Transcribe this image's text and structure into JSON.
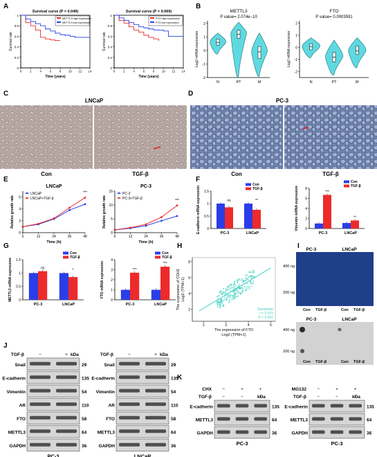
{
  "figure": {
    "panel_letters": {
      "A": "A",
      "B": "B",
      "C": "C",
      "D": "D",
      "E": "E",
      "F": "F",
      "G": "G",
      "H": "H",
      "I": "I",
      "J": "J",
      "K": "K"
    },
    "micro": {
      "c_title": "LNCaP",
      "d_title": "PC-3",
      "con": "Con",
      "tgf": "TGF-β"
    },
    "dotblot": {
      "top_left": "PC-3",
      "top_right": "LNCaP",
      "row1": "400 ng",
      "row2": "200 ng",
      "lanes": [
        "Con",
        "TGF-β",
        "Con",
        "TGF-β"
      ]
    },
    "colors": {
      "blue": "#2a3ee8",
      "red": "#ee2a2a",
      "cyan": "#5fd9e0",
      "teal": "#45d0c4"
    }
  },
  "chart_data": [
    {
      "id": "A1",
      "type": "line",
      "title": "Survival curve (P = 0.049)",
      "xlabel": "Time (years)",
      "ylabel": "Survival rate",
      "xlim": [
        0,
        14
      ],
      "ylim": [
        0,
        1.0
      ],
      "xticks": [
        0,
        2,
        4,
        6,
        8,
        10,
        12,
        14
      ],
      "yticks": [
        0.0,
        0.2,
        0.4,
        0.6,
        0.8,
        1.0
      ],
      "series": [
        {
          "name": "METTL3 high expression",
          "color": "red",
          "x": [
            0,
            1,
            2,
            3,
            4,
            5,
            6,
            7,
            8
          ],
          "values": [
            1.0,
            0.86,
            0.8,
            0.72,
            0.58,
            0.55,
            0.53,
            0.52,
            0.52
          ]
        },
        {
          "name": "METTL3 low expression",
          "color": "blue",
          "x": [
            0,
            1,
            2,
            3,
            4,
            5,
            6,
            7,
            8,
            9,
            10,
            11,
            12,
            14
          ],
          "values": [
            1.0,
            0.93,
            0.88,
            0.84,
            0.8,
            0.74,
            0.7,
            0.66,
            0.63,
            0.62,
            0.6,
            0.58,
            0.58,
            0.58
          ]
        }
      ]
    },
    {
      "id": "A2",
      "type": "line",
      "title": "Survival curve (P = 0.069)",
      "xlabel": "Time (years)",
      "ylabel": "Survival rate",
      "xlim": [
        0,
        14
      ],
      "ylim": [
        0,
        1.0
      ],
      "xticks": [
        0,
        2,
        4,
        6,
        8,
        10,
        12,
        14
      ],
      "yticks": [
        0.0,
        0.2,
        0.4,
        0.6,
        0.8,
        1.0
      ],
      "series": [
        {
          "name": "FTO high expression",
          "color": "red",
          "x": [
            0,
            1,
            2,
            3,
            4,
            5,
            6,
            7,
            8,
            9
          ],
          "values": [
            1.0,
            0.9,
            0.85,
            0.78,
            0.72,
            0.68,
            0.62,
            0.58,
            0.55,
            0.52
          ]
        },
        {
          "name": "FTO low expression",
          "color": "blue",
          "x": [
            0,
            1,
            2,
            3,
            4,
            5,
            6,
            7,
            8,
            9,
            10,
            11,
            12,
            14
          ],
          "values": [
            1.0,
            0.95,
            0.9,
            0.86,
            0.82,
            0.78,
            0.76,
            0.74,
            0.72,
            0.72,
            0.7,
            0.6,
            0.6,
            0.6
          ]
        }
      ]
    },
    {
      "id": "B1",
      "type": "violin",
      "title": "METTL3",
      "subtitle": "P value=  2.074e−10",
      "ylabel": "Log2 mRNA expression",
      "categories": [
        "N",
        "PT",
        "M"
      ],
      "ylim": [
        -2,
        2.2
      ],
      "yticks": [
        -2,
        -1,
        0,
        1,
        2
      ],
      "medians": [
        0.6,
        1.2,
        -0.1
      ],
      "q1": [
        0.4,
        0.9,
        -0.6
      ],
      "q3": [
        0.85,
        1.5,
        0.3
      ],
      "min": [
        -0.2,
        -1.8,
        -1.8
      ],
      "max": [
        1.3,
        2.1,
        1.3
      ]
    },
    {
      "id": "B2",
      "type": "violin",
      "title": "FTO",
      "subtitle": "P value= 0.0003591",
      "ylabel": "Log2 mRNA expression",
      "categories": [
        "N",
        "PT",
        "M"
      ],
      "ylim": [
        -2.5,
        2.2
      ],
      "yticks": [
        -2,
        -1,
        0,
        1,
        2
      ],
      "medians": [
        0.05,
        -0.8,
        -0.3
      ],
      "q1": [
        -0.2,
        -1.2,
        -0.6
      ],
      "q3": [
        0.3,
        -0.4,
        0.1
      ],
      "min": [
        -0.8,
        -2.2,
        -1.6
      ],
      "max": [
        0.8,
        0.6,
        0.8
      ]
    },
    {
      "id": "E1",
      "type": "line",
      "title": "LNCaP",
      "xlabel": "Time (h)",
      "ylabel": "Relative growth rate",
      "xlim": [
        0,
        48
      ],
      "ylim": [
        0,
        7
      ],
      "xticks": [
        0,
        12,
        24,
        36,
        48
      ],
      "yticks": [
        0,
        2,
        4,
        6
      ],
      "x": [
        0,
        12,
        24,
        36,
        48
      ],
      "annotations": [
        "***"
      ],
      "series": [
        {
          "name": "LNCaP",
          "color": "blue",
          "values": [
            1,
            1.4,
            2.3,
            3.8,
            4.8
          ]
        },
        {
          "name": "LNCaP+TGF-β",
          "color": "red",
          "values": [
            1,
            1.5,
            2.4,
            4.2,
            5.9
          ]
        }
      ]
    },
    {
      "id": "E2",
      "type": "line",
      "title": "PC-3",
      "xlabel": "Time (h)",
      "ylabel": "Relative growth rate",
      "xlim": [
        0,
        48
      ],
      "ylim": [
        0,
        15
      ],
      "xticks": [
        0,
        12,
        24,
        36,
        48
      ],
      "yticks": [
        0,
        5,
        10,
        15
      ],
      "x": [
        0,
        12,
        24,
        36,
        48
      ],
      "annotations": [
        "***"
      ],
      "series": [
        {
          "name": "PC-3",
          "color": "blue",
          "values": [
            1,
            1.6,
            2.5,
            4.3,
            6.0
          ]
        },
        {
          "name": "PC-3+TGF-β",
          "color": "red",
          "values": [
            1,
            1.8,
            3.0,
            5.6,
            9.8
          ]
        }
      ]
    },
    {
      "id": "F1",
      "type": "bar",
      "ylabel": "E-cadherin mRNA expression",
      "categories": [
        "PC-3",
        "LNCaP"
      ],
      "ylim": [
        0,
        1.5
      ],
      "yticks": [
        0,
        0.5,
        1.0,
        1.5
      ],
      "sig": [
        "ns",
        "**"
      ],
      "series": [
        {
          "name": "Con",
          "color": "blue",
          "values": [
            1.0,
            1.0
          ]
        },
        {
          "name": "TGF-β",
          "color": "red",
          "values": [
            0.85,
            0.75
          ]
        }
      ]
    },
    {
      "id": "F2",
      "type": "bar",
      "ylabel": "Vimentin mRNA expression",
      "categories": [
        "PC-3",
        "LNCaP"
      ],
      "ylim": [
        0,
        8
      ],
      "yticks": [
        0,
        2,
        4,
        6,
        8
      ],
      "sig": [
        "***",
        "**"
      ],
      "series": [
        {
          "name": "Con",
          "color": "blue",
          "values": [
            1.0,
            1.1
          ]
        },
        {
          "name": "TGF-β",
          "color": "red",
          "values": [
            6.7,
            1.6
          ]
        }
      ]
    },
    {
      "id": "G1",
      "type": "bar",
      "ylabel": "METTL3 mRNA expression",
      "categories": [
        "PC-3",
        "LNCaP"
      ],
      "ylim": [
        0,
        1.5
      ],
      "yticks": [
        0,
        0.5,
        1.0,
        1.5
      ],
      "sig": [
        "ns",
        "*"
      ],
      "series": [
        {
          "name": "Con",
          "color": "blue",
          "values": [
            1.0,
            1.0
          ]
        },
        {
          "name": "TGF-β",
          "color": "red",
          "values": [
            1.07,
            0.85
          ]
        }
      ]
    },
    {
      "id": "G2",
      "type": "bar",
      "ylabel": "FTO mRNA expression",
      "categories": [
        "PC-3",
        "LNCaP"
      ],
      "ylim": [
        0,
        4
      ],
      "yticks": [
        0,
        1,
        2,
        3,
        4
      ],
      "sig": [
        "***",
        "***"
      ],
      "series": [
        {
          "name": "Con",
          "color": "blue",
          "values": [
            1.0,
            1.0
          ]
        },
        {
          "name": "TGF-β",
          "color": "red",
          "values": [
            2.7,
            3.3
          ]
        }
      ]
    },
    {
      "id": "H",
      "type": "scatter",
      "xlabel": "The expression of FTO",
      "xlabel2": "Log2 (TPM+1)",
      "ylabel": "The expression of CDH1",
      "ylabel2": "Log2 (TPM+1)",
      "xlim": [
        1.5,
        5.2
      ],
      "ylim": [
        0.5,
        8.5
      ],
      "xticks": [
        2,
        3,
        4,
        5
      ],
      "yticks": [
        2,
        4,
        6,
        8
      ],
      "annotation": [
        "Spearman",
        "r = 0.670",
        "P < 0.001"
      ]
    },
    {
      "id": "J1",
      "type": "blot",
      "cell": "PC-3",
      "header": [
        "TGF-β",
        "−",
        "+",
        "kDa"
      ],
      "rows": [
        [
          "Snail",
          "29"
        ],
        [
          "E-cadherin",
          "135"
        ],
        [
          "Vimentin",
          "54"
        ],
        [
          "AR",
          "110"
        ],
        [
          "FTO",
          "58"
        ],
        [
          "METTL3",
          "64"
        ],
        [
          "GAPDH",
          "36"
        ]
      ]
    },
    {
      "id": "J2",
      "type": "blot",
      "cell": "LNCaP",
      "header": [
        "TGF-β",
        "−",
        "+",
        "kDa"
      ],
      "rows": [
        [
          "Snail",
          "29"
        ],
        [
          "E-cadherin",
          "135"
        ],
        [
          "Vimentin",
          "54"
        ],
        [
          "AR",
          "110"
        ],
        [
          "FTO",
          "58"
        ],
        [
          "METTL3",
          "64"
        ],
        [
          "GAPDH",
          "36"
        ]
      ]
    },
    {
      "id": "K1",
      "type": "blot",
      "cell": "PC-3",
      "treat": [
        "CHX",
        "−",
        "+",
        "+"
      ],
      "header": [
        "TGF-β",
        "−",
        "−",
        "+",
        "kDa"
      ],
      "rows": [
        [
          "E-cadherin",
          "135"
        ],
        [
          "METTL3",
          "64"
        ],
        [
          "GAPDH",
          "36"
        ]
      ]
    },
    {
      "id": "K2",
      "type": "blot",
      "cell": "PC-3",
      "treat": [
        "MG132",
        "−",
        "+",
        "+"
      ],
      "header": [
        "TGF-β",
        "−",
        "−",
        "+",
        "kDa"
      ],
      "rows": [
        [
          "E-cadherin",
          "135"
        ],
        [
          "METTL3",
          "64"
        ],
        [
          "GAPDH",
          "36"
        ]
      ]
    }
  ]
}
